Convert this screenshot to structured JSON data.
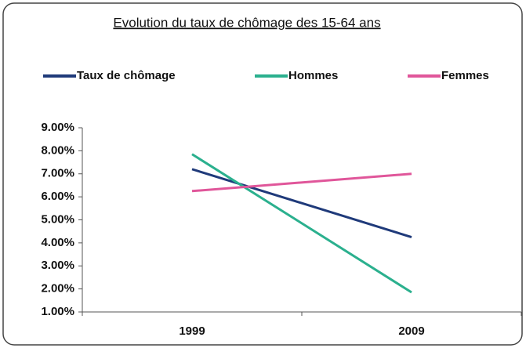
{
  "chart_data": {
    "type": "line",
    "title": "Evolution du taux de chômage des 15-64 ans",
    "categories": [
      "1999",
      "2009"
    ],
    "series": [
      {
        "name": "Taux de chômage",
        "color": "#1f3a7a",
        "values": [
          7.2,
          4.25
        ]
      },
      {
        "name": "Hommes",
        "color": "#2bb08e",
        "values": [
          7.85,
          1.85
        ]
      },
      {
        "name": "Femmes",
        "color": "#e0569a",
        "values": [
          6.25,
          7.0
        ]
      }
    ],
    "ylim": [
      1,
      9
    ],
    "yticks": [
      {
        "value": 1,
        "label": "1.00%"
      },
      {
        "value": 2,
        "label": "2.00%"
      },
      {
        "value": 3,
        "label": "3.00%"
      },
      {
        "value": 4,
        "label": "4.00%"
      },
      {
        "value": 5,
        "label": "5.00%"
      },
      {
        "value": 6,
        "label": "6.00%"
      },
      {
        "value": 7,
        "label": "7.00%"
      },
      {
        "value": 8,
        "label": "8.00%"
      },
      {
        "value": 9,
        "label": "9.00%"
      }
    ],
    "legend": "top"
  }
}
